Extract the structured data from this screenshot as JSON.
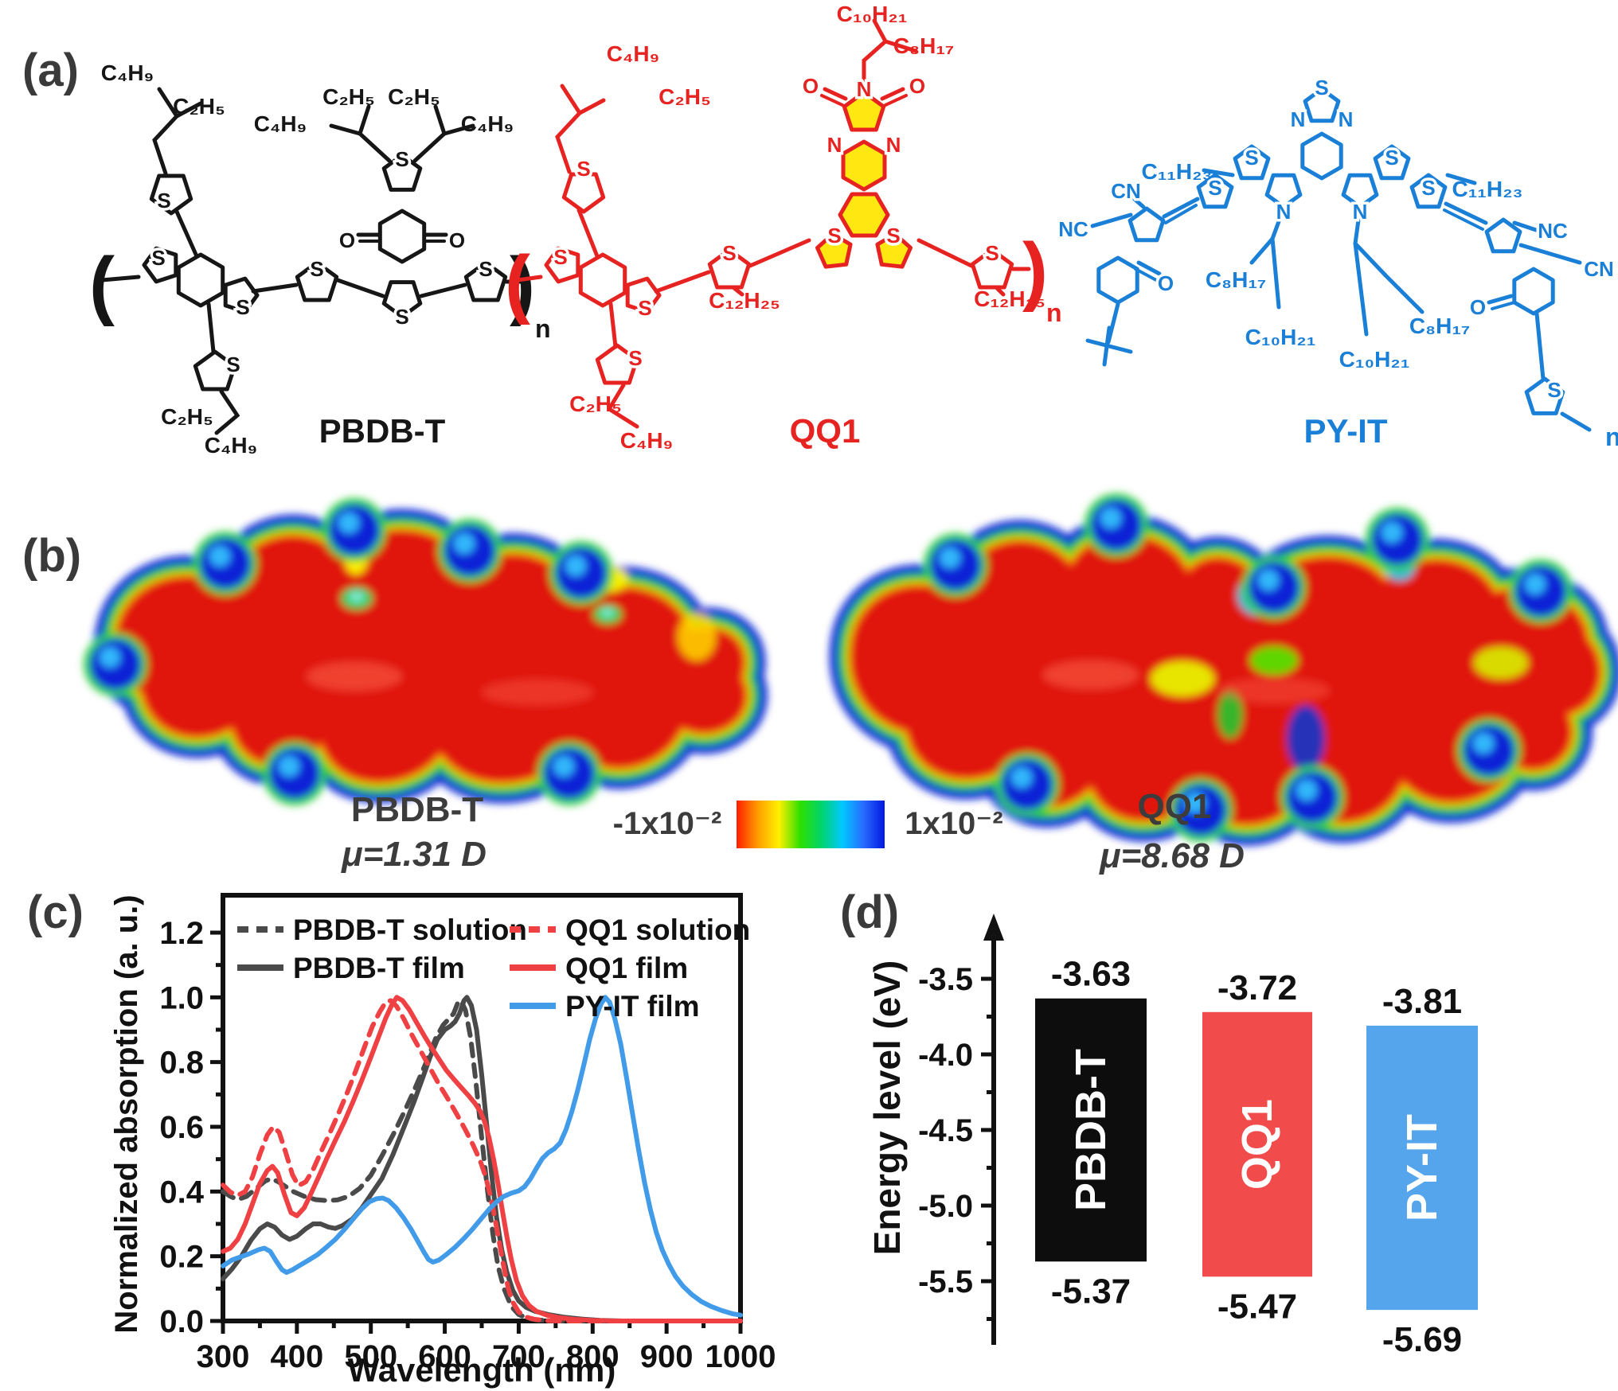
{
  "panels": {
    "a": "(a)",
    "b": "(b)",
    "c": "(c)",
    "d": "(d)"
  },
  "molecules": [
    {
      "name": "PBDB-T",
      "color": "#161616",
      "side_chains": [
        "C₄H₉",
        "C₂H₅",
        "C₄H₉",
        "C₂H₅",
        "C₂H₅",
        "C₄H₉",
        "C₂H₅",
        "C₄H₉"
      ]
    },
    {
      "name": "QQ1",
      "color": "#e62320",
      "highlight": "#ffe711",
      "side_chains": [
        "C₄H₉",
        "C₂H₅",
        "C₁₀H₂₁",
        "C₈H₁₇",
        "C₁₂H₂₅",
        "C₁₂H₂₅",
        "C₂H₅",
        "C₄H₉"
      ]
    },
    {
      "name": "PY-IT",
      "color": "#1a7fd6",
      "side_chains": [
        "C₁₁H₂₃",
        "C₁₁H₂₃",
        "C₈H₁₇",
        "C₁₀H₂₁",
        "C₈H₁₇",
        "C₁₀H₂₁"
      ]
    }
  ],
  "atoms": {
    "S": "S",
    "N": "N",
    "O": "O",
    "CN": "CN",
    "NC": "NC"
  },
  "notation": {
    "open": "(",
    "close": ")",
    "repeat": "n"
  },
  "esp": {
    "left": {
      "name": "PBDB-T",
      "dipole": "μ=1.31 D"
    },
    "right": {
      "name": "QQ1",
      "dipole": "μ=8.68 D"
    },
    "colorbar": {
      "min": "-1x10⁻²",
      "max": "1x10⁻²",
      "gradient": [
        "#ff1e00",
        "#ff9c00",
        "#fff000",
        "#2fe000",
        "#00d46a",
        "#00c8ff",
        "#2a6bff",
        "#0018e0"
      ]
    }
  },
  "chart_data": {
    "type": "line",
    "title": "",
    "xlabel": "Wavelength (nm)",
    "ylabel": "Normalized absorption (a. u.)",
    "xlim": [
      300,
      1000
    ],
    "ylim": [
      0.0,
      1.3
    ],
    "xticks": [
      300,
      400,
      500,
      600,
      700,
      800,
      900,
      1000
    ],
    "yticks": [
      0.0,
      0.2,
      0.4,
      0.6,
      0.8,
      1.0,
      1.2
    ],
    "grid": false,
    "legend_position": "top-inside",
    "series": [
      {
        "name": "PBDB-T solution",
        "color": "#4a4a4a",
        "style": "dashed",
        "points": [
          [
            300,
            0.4
          ],
          [
            310,
            0.385
          ],
          [
            320,
            0.375
          ],
          [
            332,
            0.385
          ],
          [
            345,
            0.41
          ],
          [
            357,
            0.432
          ],
          [
            365,
            0.44
          ],
          [
            375,
            0.43
          ],
          [
            385,
            0.415
          ],
          [
            395,
            0.4
          ],
          [
            410,
            0.385
          ],
          [
            425,
            0.375
          ],
          [
            440,
            0.372
          ],
          [
            455,
            0.374
          ],
          [
            470,
            0.385
          ],
          [
            485,
            0.41
          ],
          [
            500,
            0.45
          ],
          [
            515,
            0.51
          ],
          [
            530,
            0.575
          ],
          [
            545,
            0.645
          ],
          [
            560,
            0.72
          ],
          [
            575,
            0.8
          ],
          [
            588,
            0.875
          ],
          [
            598,
            0.915
          ],
          [
            606,
            0.935
          ],
          [
            612,
            0.95
          ],
          [
            618,
            0.985
          ],
          [
            622,
            0.99
          ],
          [
            628,
            0.96
          ],
          [
            635,
            0.875
          ],
          [
            642,
            0.74
          ],
          [
            650,
            0.565
          ],
          [
            658,
            0.4
          ],
          [
            665,
            0.27
          ],
          [
            672,
            0.17
          ],
          [
            680,
            0.1
          ],
          [
            690,
            0.045
          ],
          [
            700,
            0.02
          ],
          [
            712,
            0.008
          ],
          [
            725,
            0.003
          ],
          [
            750,
            0.0
          ],
          [
            1000,
            0.0
          ]
        ]
      },
      {
        "name": "PBDB-T film",
        "color": "#4a4a4a",
        "style": "solid",
        "points": [
          [
            300,
            0.13
          ],
          [
            312,
            0.16
          ],
          [
            325,
            0.2
          ],
          [
            338,
            0.25
          ],
          [
            350,
            0.285
          ],
          [
            360,
            0.3
          ],
          [
            370,
            0.29
          ],
          [
            380,
            0.265
          ],
          [
            390,
            0.252
          ],
          [
            400,
            0.262
          ],
          [
            412,
            0.285
          ],
          [
            422,
            0.3
          ],
          [
            432,
            0.3
          ],
          [
            443,
            0.29
          ],
          [
            452,
            0.286
          ],
          [
            462,
            0.295
          ],
          [
            475,
            0.315
          ],
          [
            488,
            0.35
          ],
          [
            500,
            0.39
          ],
          [
            515,
            0.44
          ],
          [
            530,
            0.515
          ],
          [
            545,
            0.6
          ],
          [
            558,
            0.675
          ],
          [
            570,
            0.75
          ],
          [
            580,
            0.815
          ],
          [
            590,
            0.87
          ],
          [
            600,
            0.9
          ],
          [
            608,
            0.912
          ],
          [
            614,
            0.925
          ],
          [
            620,
            0.95
          ],
          [
            626,
            0.99
          ],
          [
            630,
            1.0
          ],
          [
            636,
            0.975
          ],
          [
            643,
            0.9
          ],
          [
            650,
            0.76
          ],
          [
            657,
            0.6
          ],
          [
            663,
            0.46
          ],
          [
            670,
            0.32
          ],
          [
            677,
            0.22
          ],
          [
            684,
            0.15
          ],
          [
            692,
            0.095
          ],
          [
            700,
            0.062
          ],
          [
            710,
            0.042
          ],
          [
            722,
            0.03
          ],
          [
            740,
            0.02
          ],
          [
            760,
            0.012
          ],
          [
            785,
            0.006
          ],
          [
            810,
            0.002
          ],
          [
            840,
            0.0
          ],
          [
            1000,
            0.0
          ]
        ]
      },
      {
        "name": "QQ1 solution",
        "color": "#ef4043",
        "style": "dashed",
        "points": [
          [
            300,
            0.42
          ],
          [
            310,
            0.398
          ],
          [
            320,
            0.388
          ],
          [
            330,
            0.4
          ],
          [
            340,
            0.445
          ],
          [
            350,
            0.515
          ],
          [
            360,
            0.575
          ],
          [
            368,
            0.6
          ],
          [
            376,
            0.583
          ],
          [
            385,
            0.52
          ],
          [
            394,
            0.452
          ],
          [
            402,
            0.418
          ],
          [
            412,
            0.43
          ],
          [
            422,
            0.468
          ],
          [
            432,
            0.52
          ],
          [
            444,
            0.578
          ],
          [
            456,
            0.64
          ],
          [
            468,
            0.705
          ],
          [
            480,
            0.775
          ],
          [
            492,
            0.85
          ],
          [
            502,
            0.91
          ],
          [
            512,
            0.955
          ],
          [
            520,
            0.985
          ],
          [
            527,
            0.99
          ],
          [
            535,
            0.972
          ],
          [
            545,
            0.932
          ],
          [
            556,
            0.882
          ],
          [
            568,
            0.832
          ],
          [
            580,
            0.782
          ],
          [
            592,
            0.732
          ],
          [
            604,
            0.687
          ],
          [
            616,
            0.64
          ],
          [
            628,
            0.59
          ],
          [
            638,
            0.545
          ],
          [
            648,
            0.495
          ],
          [
            655,
            0.448
          ],
          [
            662,
            0.385
          ],
          [
            668,
            0.315
          ],
          [
            674,
            0.24
          ],
          [
            680,
            0.165
          ],
          [
            686,
            0.1
          ],
          [
            692,
            0.058
          ],
          [
            700,
            0.028
          ],
          [
            710,
            0.012
          ],
          [
            722,
            0.005
          ],
          [
            740,
            0.001
          ],
          [
            760,
            0.0
          ],
          [
            1000,
            0.0
          ]
        ]
      },
      {
        "name": "QQ1 film",
        "color": "#ef4043",
        "style": "solid",
        "points": [
          [
            300,
            0.215
          ],
          [
            310,
            0.225
          ],
          [
            320,
            0.252
          ],
          [
            330,
            0.3
          ],
          [
            340,
            0.362
          ],
          [
            350,
            0.425
          ],
          [
            360,
            0.465
          ],
          [
            367,
            0.478
          ],
          [
            374,
            0.458
          ],
          [
            383,
            0.392
          ],
          [
            392,
            0.335
          ],
          [
            400,
            0.325
          ],
          [
            410,
            0.35
          ],
          [
            420,
            0.398
          ],
          [
            430,
            0.448
          ],
          [
            440,
            0.5
          ],
          [
            452,
            0.558
          ],
          [
            464,
            0.615
          ],
          [
            476,
            0.678
          ],
          [
            488,
            0.745
          ],
          [
            500,
            0.815
          ],
          [
            510,
            0.875
          ],
          [
            520,
            0.935
          ],
          [
            528,
            0.975
          ],
          [
            535,
            1.0
          ],
          [
            543,
            0.99
          ],
          [
            552,
            0.962
          ],
          [
            562,
            0.922
          ],
          [
            572,
            0.882
          ],
          [
            582,
            0.845
          ],
          [
            592,
            0.81
          ],
          [
            602,
            0.775
          ],
          [
            612,
            0.748
          ],
          [
            622,
            0.722
          ],
          [
            632,
            0.697
          ],
          [
            641,
            0.672
          ],
          [
            648,
            0.648
          ],
          [
            654,
            0.615
          ],
          [
            660,
            0.565
          ],
          [
            666,
            0.5
          ],
          [
            672,
            0.425
          ],
          [
            678,
            0.34
          ],
          [
            684,
            0.26
          ],
          [
            690,
            0.19
          ],
          [
            697,
            0.125
          ],
          [
            705,
            0.078
          ],
          [
            714,
            0.048
          ],
          [
            724,
            0.03
          ],
          [
            738,
            0.018
          ],
          [
            755,
            0.01
          ],
          [
            775,
            0.005
          ],
          [
            800,
            0.002
          ],
          [
            830,
            0.0
          ],
          [
            1000,
            0.0
          ]
        ]
      },
      {
        "name": "PY-IT film",
        "color": "#419be9",
        "style": "solid",
        "points": [
          [
            300,
            0.17
          ],
          [
            312,
            0.188
          ],
          [
            324,
            0.198
          ],
          [
            336,
            0.208
          ],
          [
            348,
            0.22
          ],
          [
            356,
            0.225
          ],
          [
            364,
            0.215
          ],
          [
            372,
            0.185
          ],
          [
            380,
            0.158
          ],
          [
            386,
            0.15
          ],
          [
            394,
            0.158
          ],
          [
            404,
            0.172
          ],
          [
            416,
            0.188
          ],
          [
            428,
            0.205
          ],
          [
            440,
            0.228
          ],
          [
            452,
            0.252
          ],
          [
            464,
            0.282
          ],
          [
            476,
            0.315
          ],
          [
            488,
            0.347
          ],
          [
            498,
            0.368
          ],
          [
            508,
            0.378
          ],
          [
            516,
            0.38
          ],
          [
            524,
            0.372
          ],
          [
            534,
            0.35
          ],
          [
            544,
            0.32
          ],
          [
            554,
            0.285
          ],
          [
            564,
            0.245
          ],
          [
            572,
            0.212
          ],
          [
            578,
            0.19
          ],
          [
            584,
            0.182
          ],
          [
            592,
            0.188
          ],
          [
            602,
            0.205
          ],
          [
            614,
            0.228
          ],
          [
            626,
            0.255
          ],
          [
            638,
            0.285
          ],
          [
            650,
            0.318
          ],
          [
            660,
            0.345
          ],
          [
            670,
            0.368
          ],
          [
            680,
            0.385
          ],
          [
            690,
            0.395
          ],
          [
            700,
            0.402
          ],
          [
            708,
            0.415
          ],
          [
            716,
            0.44
          ],
          [
            724,
            0.472
          ],
          [
            732,
            0.502
          ],
          [
            740,
            0.52
          ],
          [
            748,
            0.532
          ],
          [
            756,
            0.55
          ],
          [
            764,
            0.592
          ],
          [
            772,
            0.648
          ],
          [
            780,
            0.715
          ],
          [
            788,
            0.79
          ],
          [
            796,
            0.87
          ],
          [
            804,
            0.935
          ],
          [
            811,
            0.978
          ],
          [
            817,
            1.0
          ],
          [
            823,
            0.985
          ],
          [
            830,
            0.935
          ],
          [
            838,
            0.855
          ],
          [
            846,
            0.75
          ],
          [
            854,
            0.64
          ],
          [
            862,
            0.53
          ],
          [
            870,
            0.43
          ],
          [
            878,
            0.345
          ],
          [
            886,
            0.275
          ],
          [
            894,
            0.22
          ],
          [
            903,
            0.175
          ],
          [
            912,
            0.138
          ],
          [
            922,
            0.108
          ],
          [
            934,
            0.082
          ],
          [
            947,
            0.06
          ],
          [
            960,
            0.045
          ],
          [
            975,
            0.032
          ],
          [
            990,
            0.022
          ],
          [
            1000,
            0.018
          ]
        ]
      }
    ]
  },
  "energy": {
    "ylabel": "Energy level (eV)",
    "axis_ticks": [
      -3.5,
      -4.0,
      -4.5,
      -5.0,
      -5.5
    ],
    "bars": [
      {
        "name": "PBDB-T",
        "color": "#0d0d0d",
        "lumo": -3.63,
        "homo": -5.37
      },
      {
        "name": "QQ1",
        "color": "#f14b4b",
        "lumo": -3.72,
        "homo": -5.47
      },
      {
        "name": "PY-IT",
        "color": "#54a5eb",
        "lumo": -3.81,
        "homo": -5.69
      }
    ]
  }
}
